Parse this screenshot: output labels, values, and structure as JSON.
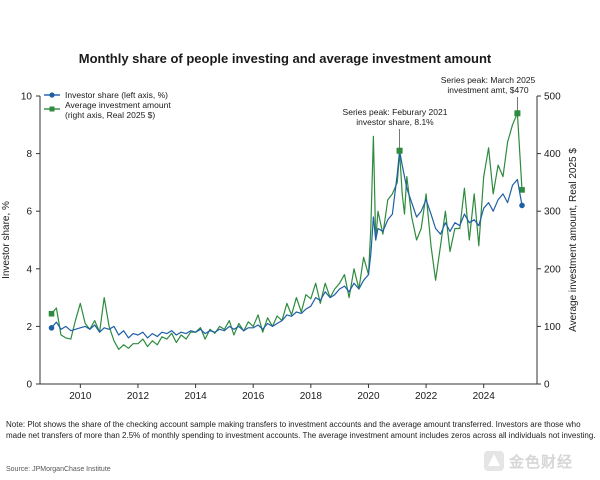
{
  "chart_data": {
    "type": "line",
    "title": "Monthly share of people investing and average investment amount",
    "ylabel_left": "Investor share, %",
    "ylabel_right": "Average investment amount, Real 2025 $",
    "ylim_left": [
      0,
      10
    ],
    "ylim_right": [
      0,
      500
    ],
    "yticks_left": [
      "0",
      "2",
      "4",
      "6",
      "8",
      "10"
    ],
    "yticks_right": [
      "0",
      "100",
      "200",
      "300",
      "400",
      "500"
    ],
    "xticks": [
      "2010",
      "2012",
      "2014",
      "2016",
      "2018",
      "2020",
      "2022",
      "2024"
    ],
    "grid": false,
    "legend_position": "top-left",
    "series": [
      {
        "name": "Investor share (left axis, %)",
        "axis": "left",
        "color": "#1f5fa6",
        "x": [
          2009.0,
          2009.17,
          2009.33,
          2009.5,
          2009.67,
          2009.83,
          2010.0,
          2010.17,
          2010.33,
          2010.5,
          2010.67,
          2010.83,
          2011.0,
          2011.17,
          2011.33,
          2011.5,
          2011.67,
          2011.83,
          2012.0,
          2012.17,
          2012.33,
          2012.5,
          2012.67,
          2012.83,
          2013.0,
          2013.17,
          2013.33,
          2013.5,
          2013.67,
          2013.83,
          2014.0,
          2014.17,
          2014.33,
          2014.5,
          2014.67,
          2014.83,
          2015.0,
          2015.17,
          2015.33,
          2015.5,
          2015.67,
          2015.83,
          2016.0,
          2016.17,
          2016.33,
          2016.5,
          2016.67,
          2016.83,
          2017.0,
          2017.17,
          2017.33,
          2017.5,
          2017.67,
          2017.83,
          2018.0,
          2018.17,
          2018.33,
          2018.5,
          2018.67,
          2018.83,
          2019.0,
          2019.17,
          2019.33,
          2019.5,
          2019.67,
          2019.83,
          2020.0,
          2020.08,
          2020.17,
          2020.25,
          2020.33,
          2020.5,
          2020.67,
          2020.83,
          2021.0,
          2021.08,
          2021.17,
          2021.25,
          2021.33,
          2021.5,
          2021.67,
          2021.83,
          2022.0,
          2022.17,
          2022.33,
          2022.5,
          2022.67,
          2022.83,
          2023.0,
          2023.17,
          2023.33,
          2023.5,
          2023.67,
          2023.83,
          2024.0,
          2024.17,
          2024.33,
          2024.5,
          2024.67,
          2024.83,
          2025.0,
          2025.17,
          2025.33
        ],
        "values": [
          1.95,
          2.15,
          1.9,
          2.0,
          1.85,
          1.9,
          1.95,
          2.0,
          1.9,
          2.05,
          1.8,
          1.95,
          1.9,
          2.0,
          1.7,
          1.85,
          1.6,
          1.75,
          1.7,
          1.8,
          1.6,
          1.75,
          1.65,
          1.8,
          1.75,
          1.85,
          1.7,
          1.8,
          1.75,
          1.85,
          1.8,
          1.9,
          1.75,
          1.85,
          1.8,
          1.9,
          1.85,
          2.0,
          1.9,
          2.0,
          1.85,
          1.95,
          1.95,
          2.05,
          1.9,
          2.1,
          2.0,
          2.1,
          2.2,
          2.4,
          2.35,
          2.5,
          2.45,
          2.6,
          2.7,
          3.0,
          2.9,
          3.2,
          3.0,
          3.1,
          3.3,
          3.4,
          3.2,
          3.5,
          3.3,
          3.6,
          3.8,
          4.5,
          5.8,
          5.0,
          5.4,
          5.3,
          5.7,
          5.9,
          7.3,
          8.1,
          7.6,
          7.2,
          6.8,
          6.3,
          5.8,
          6.0,
          6.4,
          5.9,
          5.4,
          5.2,
          5.6,
          5.3,
          5.6,
          5.5,
          5.9,
          5.6,
          5.7,
          5.5,
          6.1,
          6.3,
          6.0,
          6.4,
          6.6,
          6.3,
          6.9,
          7.1,
          6.2
        ]
      },
      {
        "name": "Average investment amount\n(right axis, Real 2025 $)",
        "axis": "right",
        "color": "#2e8b3e",
        "x": [
          2009.0,
          2009.17,
          2009.33,
          2009.5,
          2009.67,
          2009.83,
          2010.0,
          2010.17,
          2010.33,
          2010.5,
          2010.67,
          2010.83,
          2011.0,
          2011.17,
          2011.33,
          2011.5,
          2011.67,
          2011.83,
          2012.0,
          2012.17,
          2012.33,
          2012.5,
          2012.67,
          2012.83,
          2013.0,
          2013.17,
          2013.33,
          2013.5,
          2013.67,
          2013.83,
          2014.0,
          2014.17,
          2014.33,
          2014.5,
          2014.67,
          2014.83,
          2015.0,
          2015.17,
          2015.33,
          2015.5,
          2015.67,
          2015.83,
          2016.0,
          2016.17,
          2016.33,
          2016.5,
          2016.67,
          2016.83,
          2017.0,
          2017.17,
          2017.33,
          2017.5,
          2017.67,
          2017.83,
          2018.0,
          2018.17,
          2018.33,
          2018.5,
          2018.67,
          2018.83,
          2019.0,
          2019.17,
          2019.33,
          2019.5,
          2019.67,
          2019.83,
          2020.0,
          2020.08,
          2020.17,
          2020.25,
          2020.33,
          2020.5,
          2020.67,
          2020.83,
          2021.0,
          2021.08,
          2021.17,
          2021.25,
          2021.33,
          2021.5,
          2021.67,
          2021.83,
          2022.0,
          2022.17,
          2022.33,
          2022.5,
          2022.67,
          2022.83,
          2023.0,
          2023.17,
          2023.33,
          2023.5,
          2023.67,
          2023.83,
          2024.0,
          2024.17,
          2024.33,
          2024.5,
          2024.67,
          2024.83,
          2025.0,
          2025.17,
          2025.33
        ],
        "values": [
          122,
          132,
          85,
          80,
          78,
          110,
          140,
          105,
          95,
          110,
          90,
          150,
          100,
          75,
          60,
          68,
          62,
          70,
          70,
          78,
          65,
          75,
          68,
          82,
          78,
          88,
          72,
          85,
          78,
          90,
          90,
          98,
          78,
          95,
          88,
          100,
          95,
          110,
          85,
          105,
          92,
          108,
          100,
          120,
          90,
          115,
          100,
          118,
          110,
          140,
          120,
          150,
          125,
          155,
          148,
          175,
          140,
          175,
          150,
          165,
          175,
          190,
          150,
          200,
          165,
          220,
          190,
          270,
          430,
          250,
          300,
          260,
          320,
          330,
          350,
          403,
          330,
          295,
          360,
          290,
          250,
          270,
          330,
          240,
          180,
          240,
          300,
          230,
          270,
          270,
          340,
          250,
          330,
          240,
          360,
          410,
          330,
          380,
          360,
          420,
          450,
          470,
          337
        ]
      }
    ],
    "annotations": [
      {
        "text": "Series peak: Feburary 2021\ninvestor share, 8.1%",
        "x": 2021.08,
        "y": 8.1,
        "axis": "left"
      },
      {
        "text": "Series peak: March 2025\ninvestment amt, $470",
        "x": 2025.17,
        "y": 470,
        "axis": "right"
      }
    ]
  },
  "note": "Note: Plot shows the share of the checking account sample making transfers to investment accounts and the average amount transferred. Investors are those who made net transfers of more than 2.5% of monthly spending to investment accounts. The average investment amount includes zeros across all individuals not investing.",
  "source": "Source: JPMorganChase Institute",
  "watermark": {
    "text": "金色财经",
    "color": "#c8c8c8"
  }
}
